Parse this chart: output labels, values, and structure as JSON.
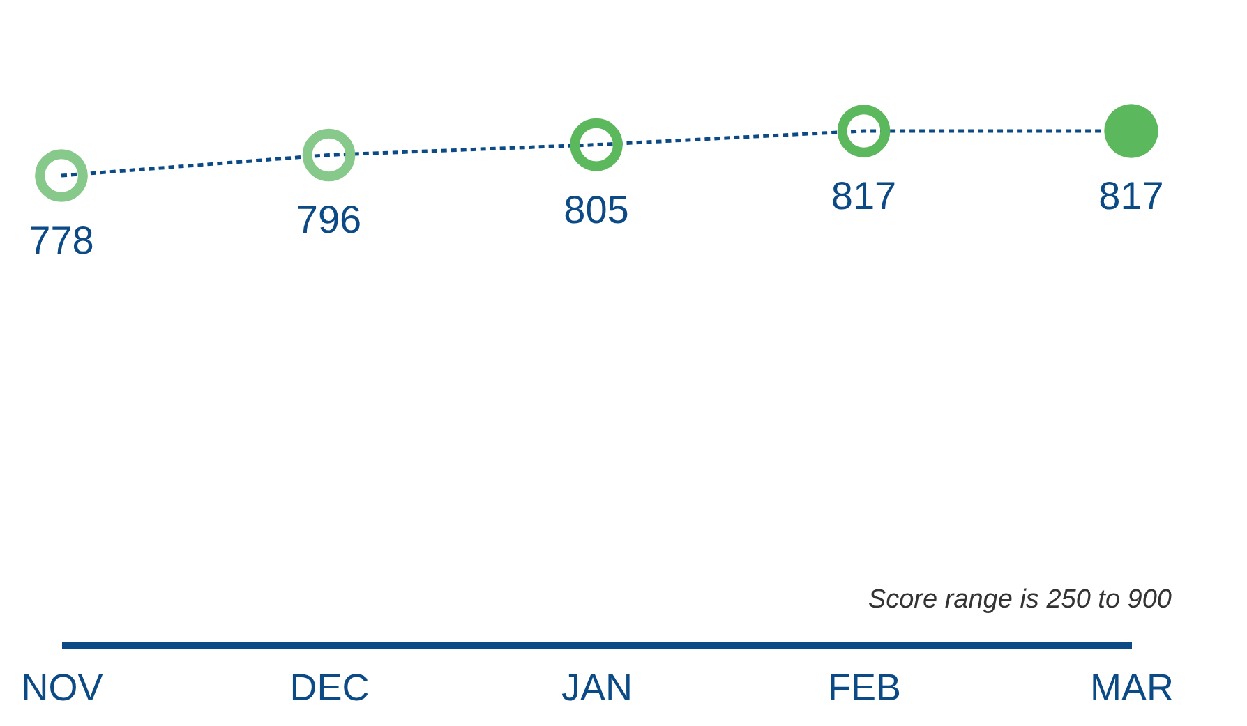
{
  "chart_data": {
    "type": "line",
    "categories": [
      "NOV",
      "DEC",
      "JAN",
      "FEB",
      "MAR"
    ],
    "values": [
      778,
      796,
      805,
      817,
      817
    ],
    "color": "#0b4a85",
    "colors": [
      "#86c98a",
      "#86c98a",
      "#5cb85c",
      "#5cb85c",
      "#5cb85c"
    ],
    "marker": "circle",
    "line_style": "dashed",
    "data_labels": true,
    "annotations": [
      "Score range is 250 to 900"
    ]
  }
}
